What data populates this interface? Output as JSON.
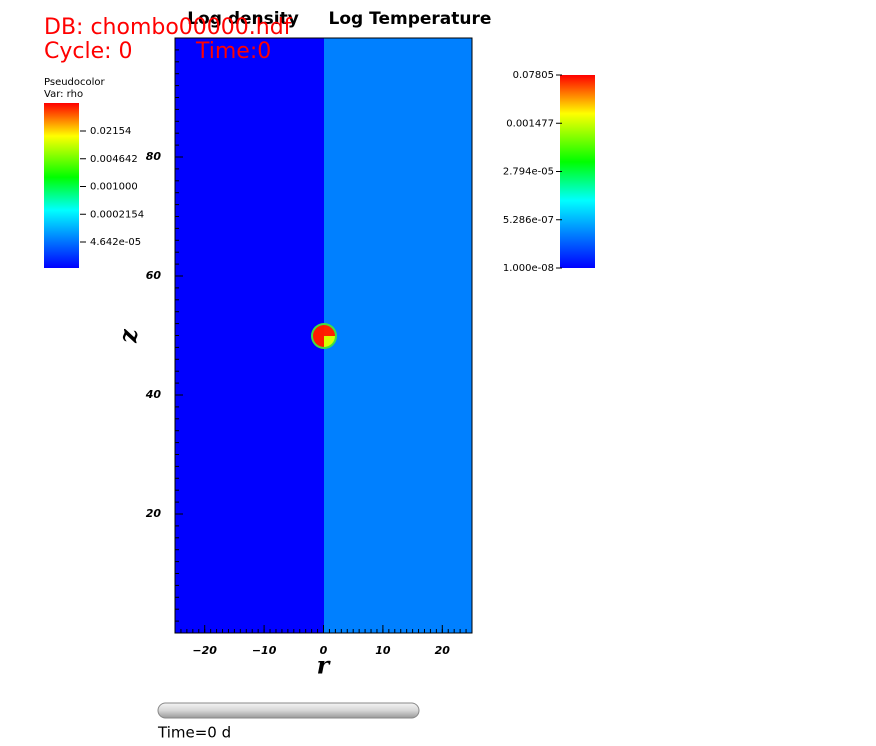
{
  "chart_data": {
    "type": "pseudocolor",
    "db_label": "DB: chombo00000.hdf",
    "cycle_label": "Cycle: 0",
    "time_label": "Time:0",
    "titles": [
      "Log density",
      "Log Temperature"
    ],
    "xlabel": "r",
    "ylabel": "z",
    "xlim": [
      -25,
      25
    ],
    "ylim": [
      0,
      100
    ],
    "xticks": [
      {
        "value": -20,
        "label": "−20"
      },
      {
        "value": -10,
        "label": "−10"
      },
      0,
      10,
      20
    ],
    "yticks": [
      20,
      40,
      60,
      80
    ],
    "legend": {
      "title": "Pseudocolor",
      "var": "Var: rho",
      "labels": [
        "0.02154",
        "0.004642",
        "0.001000",
        "0.0002154",
        "4.642e-05"
      ]
    },
    "legend2": {
      "labels": [
        "0.07805",
        "0.001477",
        "2.794e-05",
        "5.286e-07",
        "1.000e-08"
      ]
    },
    "slider_label": "Time=0 d"
  }
}
